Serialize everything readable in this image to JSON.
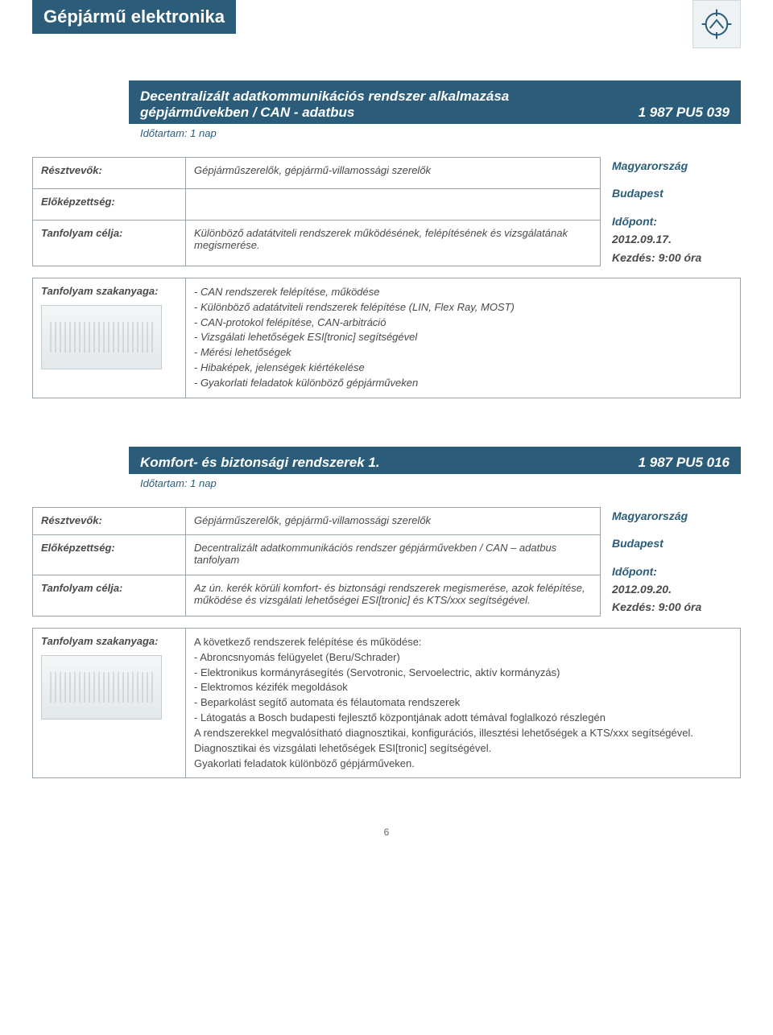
{
  "pageTitle": "Gépjármű elektronika",
  "pageNumber": "6",
  "labels": {
    "participants": "Résztvevők:",
    "prereq": "Előképzettség:",
    "goal": "Tanfolyam célja:",
    "material": "Tanfolyam szakanyaga:",
    "timeLabel": "Időpont:",
    "startPrefix": "Kezdés: "
  },
  "courses": [
    {
      "title": "Decentralizált adatkommunikációs rendszer alkalmazása gépjárművekben / CAN - adatbus",
      "code": "1 987 PU5 039",
      "duration": "Időtartam: 1 nap",
      "participants": "Gépjárműszerelők, gépjármű-villamossági szerelők",
      "prereq": "",
      "goal": "Különböző adatátviteli rendszerek működésének, felépítésének és vizsgálatának megismerése.",
      "side": {
        "country": "Magyarország",
        "city": "Budapest",
        "date": "2012.09.17.",
        "start": "9:00 óra"
      },
      "materialStyle": "italic",
      "material": "- CAN rendszerek felépítése, működése\n- Különböző adatátviteli rendszerek felépítése  (LIN, Flex Ray, MOST)\n- CAN-protokol felépítése, CAN-arbitráció\n- Vizsgálati lehetőségek ESI[tronic] segítségével\n- Mérési lehetőségek\n- Hibaképek, jelenségek kiértékelése\n- Gyakorlati feladatok különböző gépjárműveken"
    },
    {
      "title": "Komfort- és biztonsági rendszerek 1.",
      "code": "1 987 PU5 016",
      "duration": "Időtartam: 1 nap",
      "participants": "Gépjárműszerelők, gépjármű-villamossági szerelők",
      "prereq": "Decentralizált adatkommunikációs rendszer gépjárművekben / CAN – adatbus tanfolyam",
      "goal": "Az ún. kerék körüli komfort- és biztonsági rendszerek megismerése, azok felépítése, működése és vizsgálati lehetőségei ESI[tronic] és KTS/xxx segítségével.",
      "side": {
        "country": "Magyarország",
        "city": "Budapest",
        "date": "2012.09.20.",
        "start": "9:00 óra"
      },
      "materialStyle": "upright",
      "material": "A következő rendszerek felépítése és működése:\n  - Abroncsnyomás felügyelet (Beru/Schrader)\n  - Elektronikus kormányrásegítés (Servotronic, Servoelectric, aktív kormányzás)\n  - Elektromos kézifék megoldások\n  - Beparkolást segítő automata és félautomata rendszerek\n  - Látogatás a Bosch budapesti fejlesztő központjának adott témával foglalkozó részlegén\nA rendszerekkel megvalósítható diagnosztikai, konfigurációs, illesztési lehetőségek a KTS/xxx segítségével. Diagnosztikai és vizsgálati lehetőségek ESI[tronic] segítségével.\nGyakorlati feladatok különböző gépjárműveken."
    }
  ],
  "colors": {
    "brand": "#2b5d7a",
    "border": "#9aa5ab",
    "text": "#4a4a4a"
  }
}
